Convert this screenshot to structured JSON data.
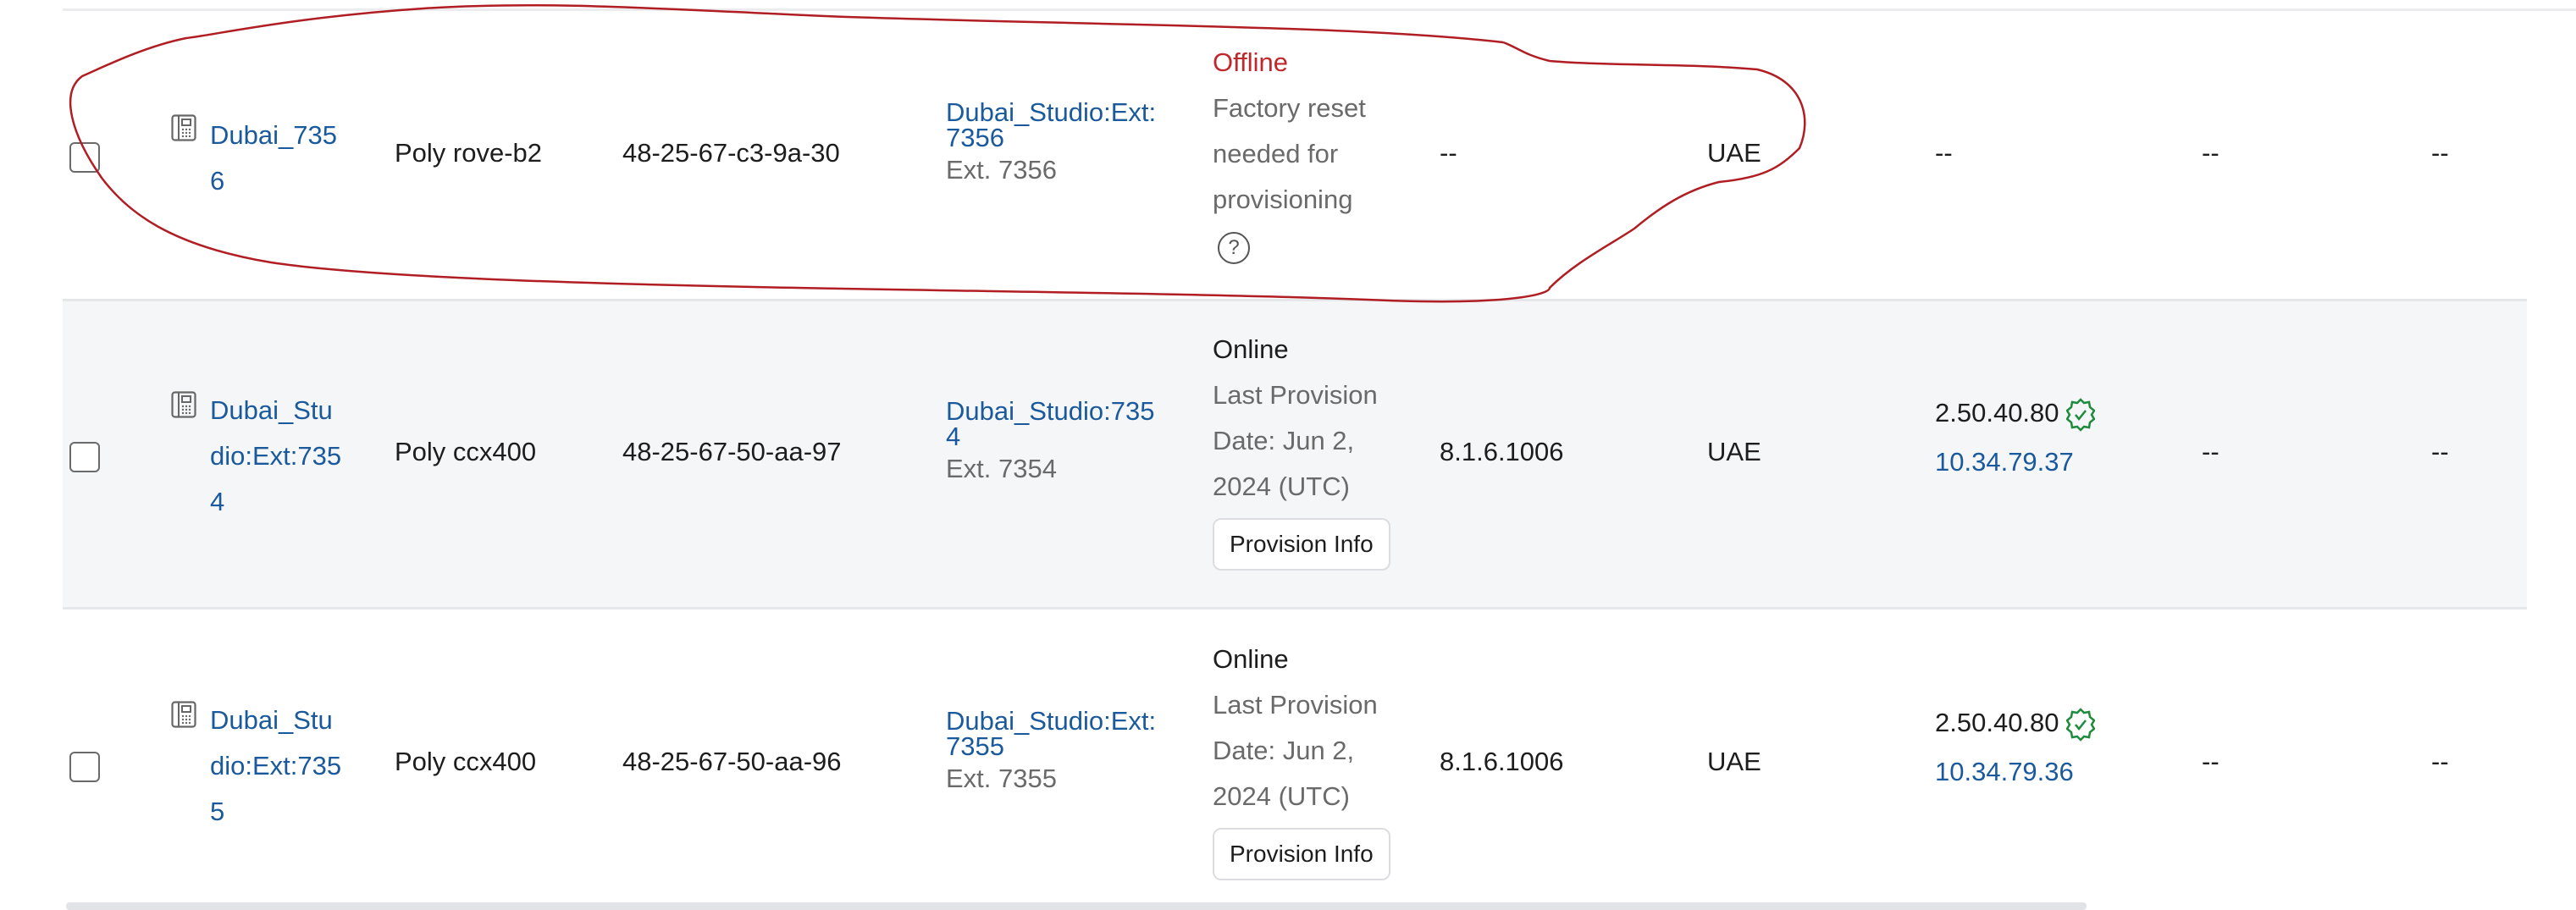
{
  "rows": [
    {
      "name": "Dubai_7356",
      "name_lines": [
        "Dubai_735",
        "6"
      ],
      "model": "Poly rove-b2",
      "mac": "48-25-67-c3-9a-30",
      "line_lines": [
        "Dubai_Studio:Ext:",
        "7356"
      ],
      "extension": "Ext. 7356",
      "status": "Offline",
      "status_detail_lines": [
        "Factory reset",
        "needed for",
        "provisioning"
      ],
      "firmware": "--",
      "location": "UAE",
      "ip_version": "--",
      "col9": "--",
      "col10": "--"
    },
    {
      "name": "Dubai_Studio:Ext:7354",
      "name_lines": [
        "Dubai_Stu",
        "dio:Ext:735",
        "4"
      ],
      "model": "Poly ccx400",
      "mac": "48-25-67-50-aa-97",
      "line_lines": [
        "Dubai_Studio:735",
        "4"
      ],
      "extension": "Ext. 7354",
      "status": "Online",
      "status_detail_lines": [
        "Last Provision",
        "Date: Jun 2,",
        "2024 (UTC)"
      ],
      "button": "Provision Info",
      "firmware": "8.1.6.1006",
      "location": "UAE",
      "ip_version": "2.50.40.80",
      "ip_address": "10.34.79.37",
      "col9": "--",
      "col10": "--"
    },
    {
      "name": "Dubai_Studio:Ext:7355",
      "name_lines": [
        "Dubai_Stu",
        "dio:Ext:735",
        "5"
      ],
      "model": "Poly ccx400",
      "mac": "48-25-67-50-aa-96",
      "line_lines": [
        "Dubai_Studio:Ext:",
        "7355"
      ],
      "extension": "Ext. 7355",
      "status": "Online",
      "status_detail_lines": [
        "Last Provision",
        "Date: Jun 2,",
        "2024 (UTC)"
      ],
      "button": "Provision Info",
      "firmware": "8.1.6.1006",
      "location": "UAE",
      "ip_version": "2.50.40.80",
      "ip_address": "10.34.79.36",
      "col9": "--",
      "col10": "--"
    }
  ],
  "icons": {
    "device": "desk-phone-icon",
    "help": "help-circle-icon",
    "verified": "verified-badge-icon"
  },
  "colors": {
    "link": "#1a5a9c",
    "offline": "#c0282d",
    "verified": "#1e8a3c",
    "annotation": "#b01e23",
    "row_alt_bg": "#f5f6f8"
  }
}
